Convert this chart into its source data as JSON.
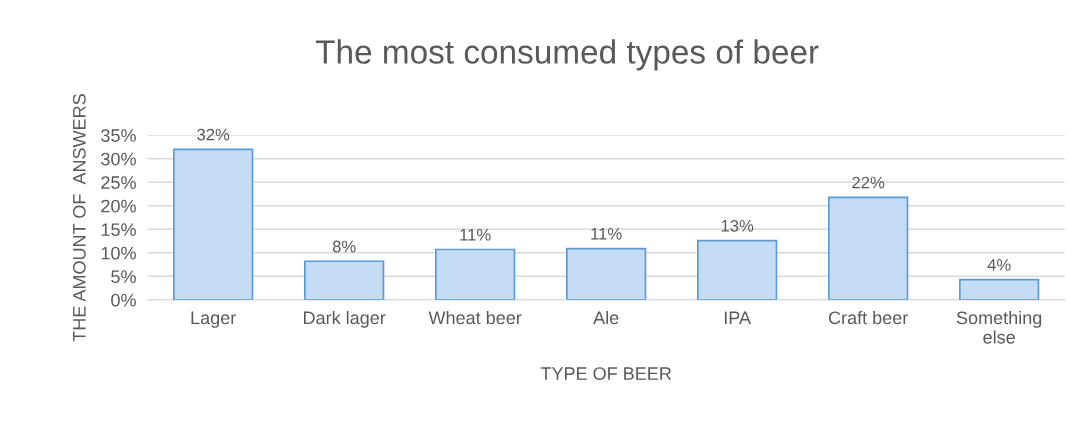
{
  "chart_data": {
    "type": "bar",
    "title": "The most consumed types of beer",
    "xlabel": "TYPE OF BEER",
    "ylabel": "THE AMOUNT OF  ANSWERS",
    "categories": [
      "Lager",
      "Dark lager",
      "Wheat beer",
      "Ale",
      "IPA",
      "Craft beer",
      "Something else"
    ],
    "values": [
      32,
      8.2,
      10.7,
      10.9,
      12.6,
      21.8,
      4.3
    ],
    "value_labels": [
      "32%",
      "8%",
      "11%",
      "11%",
      "13%",
      "22%",
      "4%"
    ],
    "color": "#c5dcf5",
    "ylim": [
      0,
      35
    ],
    "yticks": [
      {
        "value": 0,
        "label": "0%"
      },
      {
        "value": 5,
        "label": "5%"
      },
      {
        "value": 10,
        "label": "10%"
      },
      {
        "value": 15,
        "label": "15%"
      },
      {
        "value": 20,
        "label": "20%"
      },
      {
        "value": 25,
        "label": "25%"
      },
      {
        "value": 30,
        "label": "30%"
      },
      {
        "value": 35,
        "label": "35%"
      }
    ],
    "grid": "y"
  }
}
